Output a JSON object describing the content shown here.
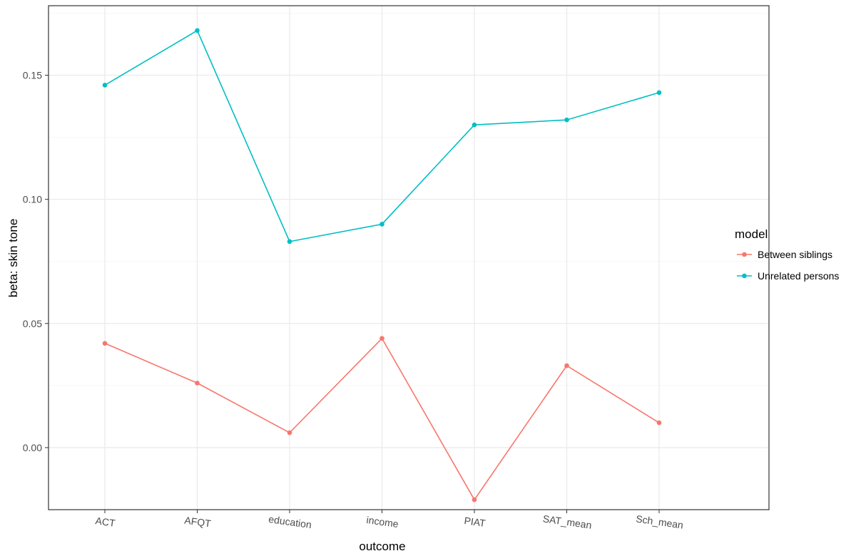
{
  "chart_data": {
    "type": "line",
    "title": "",
    "xlabel": "outcome",
    "ylabel": "beta: skin tone",
    "categories": [
      "ACT",
      "AFQT",
      "education",
      "income",
      "PIAT",
      "SAT_mean",
      "Sch_mean"
    ],
    "ylim": [
      -0.025,
      0.178
    ],
    "yticks": [
      0.0,
      0.05,
      0.1,
      0.15
    ],
    "ytick_labels": [
      "0.00",
      "0.05",
      "0.10",
      "0.15"
    ],
    "grid": true,
    "legend": {
      "title": "model",
      "position": "right"
    },
    "series": [
      {
        "name": "Between siblings",
        "color": "#F8766D",
        "values": [
          0.042,
          0.026,
          0.006,
          0.044,
          -0.021,
          0.033,
          0.01
        ]
      },
      {
        "name": "Unrelated persons",
        "color": "#00BFC4",
        "values": [
          0.146,
          0.168,
          0.083,
          0.09,
          0.13,
          0.132,
          0.143
        ]
      }
    ]
  }
}
